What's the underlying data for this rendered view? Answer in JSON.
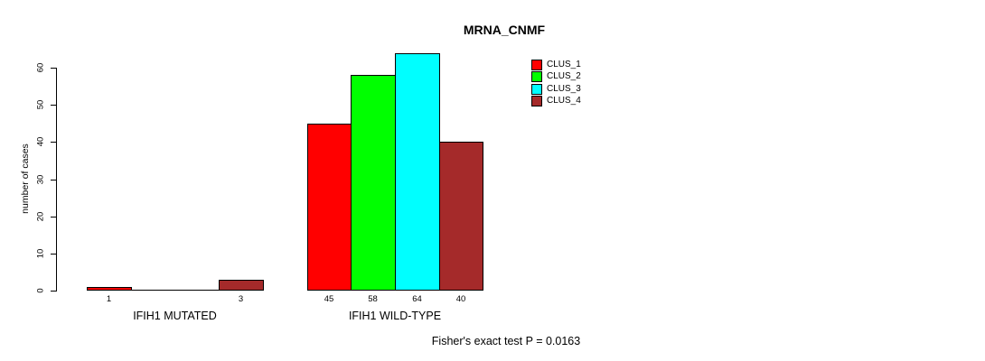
{
  "chart_data": {
    "type": "bar",
    "title": "MRNA_CNMF",
    "xlabel": "",
    "ylabel": "number of cases",
    "ylim": [
      0,
      60
    ],
    "yticks": [
      0,
      10,
      20,
      30,
      40,
      50,
      60
    ],
    "categories": [
      "IFIH1 MUTATED",
      "IFIH1 WILD-TYPE"
    ],
    "series": [
      {
        "name": "CLUS_1",
        "color": "#FF0000",
        "values": [
          1,
          45
        ]
      },
      {
        "name": "CLUS_2",
        "color": "#00FF00",
        "values": [
          0,
          58
        ]
      },
      {
        "name": "CLUS_3",
        "color": "#00FFFF",
        "values": [
          0,
          64
        ]
      },
      {
        "name": "CLUS_4",
        "color": "#A52A2A",
        "values": [
          3,
          40
        ]
      }
    ],
    "bar_value_labels": [
      [
        "1",
        "",
        "",
        "3"
      ],
      [
        "45",
        "58",
        "64",
        "40"
      ]
    ],
    "grid": false,
    "legend_position": "top-right",
    "annotation": "Fisher's exact test P = 0.0163"
  }
}
